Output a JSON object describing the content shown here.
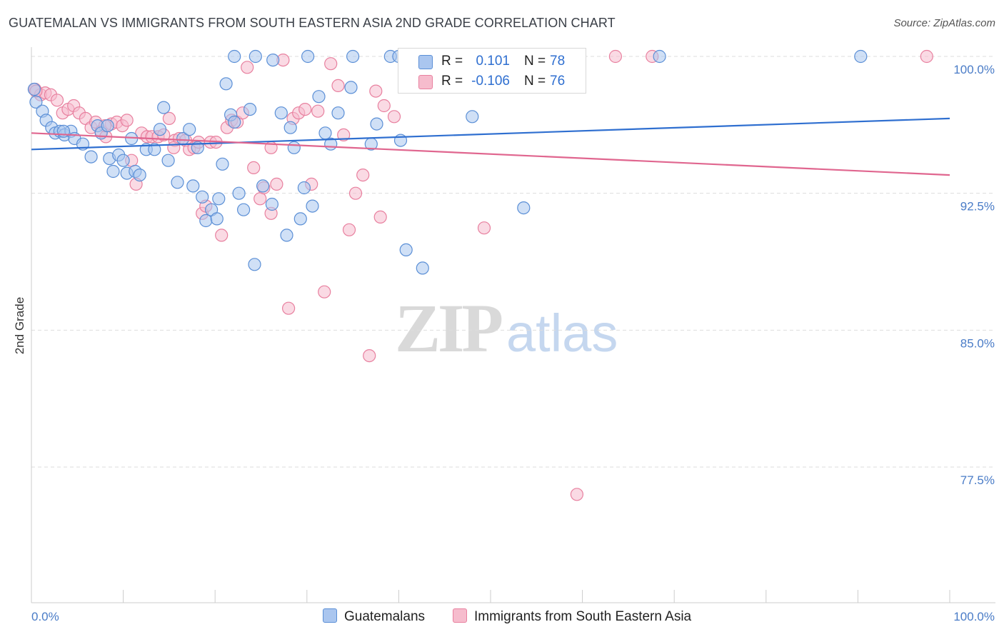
{
  "header": {
    "title": "GUATEMALAN VS IMMIGRANTS FROM SOUTH EASTERN ASIA 2ND GRADE CORRELATION CHART",
    "source": "Source: ZipAtlas.com"
  },
  "watermark": {
    "zip": "ZIP",
    "atlas": "atlas"
  },
  "legend": {
    "rows": [
      {
        "r_label": "R =",
        "r_value": "0.101",
        "n_label": "N =",
        "n_value": "78"
      },
      {
        "r_label": "R =",
        "r_value": "-0.106",
        "n_label": "N =",
        "n_value": "76"
      }
    ]
  },
  "colors": {
    "blue_fill": "#aac6ef",
    "blue_stroke": "#5b8fd6",
    "blue_line": "#2f6fd0",
    "pink_fill": "#f6bccd",
    "pink_stroke": "#e8809f",
    "pink_line": "#e0668f",
    "grid": "#dddddd",
    "axis_text": "#4a7cc7"
  },
  "chart_data": {
    "type": "scatter",
    "title": "GUATEMALAN VS IMMIGRANTS FROM SOUTH EASTERN ASIA 2ND GRADE CORRELATION CHART",
    "xlabel": "",
    "ylabel": "2nd Grade",
    "xlim": [
      0,
      100
    ],
    "ylim": [
      70,
      101.5
    ],
    "x_tick_labels": [
      "0.0%",
      "100.0%"
    ],
    "y_ticks": [
      77.5,
      85.0,
      92.5,
      100.0
    ],
    "y_tick_labels": [
      "77.5%",
      "85.0%",
      "92.5%",
      "100.0%"
    ],
    "grid": true,
    "legend_position": "top-center",
    "series": [
      {
        "name": "Guatemalans",
        "color": "#5b8fd6",
        "trend": {
          "x": [
            0,
            100
          ],
          "y": [
            94.9,
            96.6
          ]
        },
        "points": [
          [
            0.3,
            98.2
          ],
          [
            0.5,
            97.5
          ],
          [
            1.2,
            97.0
          ],
          [
            1.6,
            96.5
          ],
          [
            2.2,
            96.1
          ],
          [
            2.6,
            95.8
          ],
          [
            3.1,
            95.9
          ],
          [
            3.6,
            95.7
          ],
          [
            4.3,
            95.9
          ],
          [
            4.7,
            95.5
          ],
          [
            5.6,
            95.2
          ],
          [
            6.5,
            94.5
          ],
          [
            7.2,
            96.2
          ],
          [
            7.6,
            95.8
          ],
          [
            8.3,
            96.2
          ],
          [
            8.5,
            94.4
          ],
          [
            8.9,
            93.7
          ],
          [
            9.5,
            94.6
          ],
          [
            10.0,
            94.3
          ],
          [
            10.4,
            93.6
          ],
          [
            10.9,
            95.5
          ],
          [
            11.3,
            93.7
          ],
          [
            11.8,
            93.5
          ],
          [
            12.5,
            94.9
          ],
          [
            13.4,
            94.9
          ],
          [
            14.0,
            96.0
          ],
          [
            14.4,
            97.2
          ],
          [
            14.9,
            94.3
          ],
          [
            15.9,
            93.1
          ],
          [
            16.5,
            95.5
          ],
          [
            17.2,
            96.0
          ],
          [
            17.6,
            92.9
          ],
          [
            18.1,
            95.0
          ],
          [
            18.6,
            92.3
          ],
          [
            19.0,
            91.0
          ],
          [
            19.6,
            91.6
          ],
          [
            20.2,
            91.1
          ],
          [
            20.4,
            92.2
          ],
          [
            21.2,
            98.5
          ],
          [
            21.7,
            96.8
          ],
          [
            22.1,
            96.4
          ],
          [
            22.6,
            92.5
          ],
          [
            23.1,
            91.6
          ],
          [
            23.8,
            97.1
          ],
          [
            24.3,
            88.6
          ],
          [
            25.2,
            92.9
          ],
          [
            26.2,
            91.9
          ],
          [
            27.2,
            96.9
          ],
          [
            27.8,
            90.2
          ],
          [
            28.2,
            96.1
          ],
          [
            28.6,
            95.0
          ],
          [
            29.3,
            91.1
          ],
          [
            29.7,
            92.8
          ],
          [
            30.6,
            91.8
          ],
          [
            31.3,
            97.8
          ],
          [
            32.0,
            95.8
          ],
          [
            32.6,
            95.2
          ],
          [
            33.4,
            96.9
          ],
          [
            35.0,
            100.0
          ],
          [
            37.0,
            95.2
          ],
          [
            37.6,
            96.3
          ],
          [
            40.2,
            95.4
          ],
          [
            40.8,
            89.4
          ],
          [
            42.6,
            88.4
          ],
          [
            48.0,
            96.7
          ],
          [
            51.2,
            100.0
          ],
          [
            53.6,
            91.7
          ],
          [
            68.4,
            100.0
          ],
          [
            90.3,
            100.0
          ],
          [
            34.8,
            98.3
          ],
          [
            22.1,
            100.0
          ],
          [
            24.4,
            100.0
          ],
          [
            26.3,
            99.8
          ],
          [
            30.1,
            100.0
          ],
          [
            39.1,
            100.0
          ],
          [
            40.0,
            100.0
          ],
          [
            3.5,
            95.9
          ],
          [
            20.8,
            94.1
          ]
        ]
      },
      {
        "name": "Immigrants from South Eastern Asia",
        "color": "#e8809f",
        "trend": {
          "x": [
            0,
            100
          ],
          "y": [
            95.8,
            93.5
          ]
        },
        "points": [
          [
            0.4,
            98.2
          ],
          [
            1.0,
            97.9
          ],
          [
            1.5,
            98.0
          ],
          [
            2.1,
            97.9
          ],
          [
            2.8,
            97.6
          ],
          [
            3.4,
            96.9
          ],
          [
            4.0,
            97.1
          ],
          [
            4.6,
            97.3
          ],
          [
            5.2,
            96.9
          ],
          [
            5.9,
            96.6
          ],
          [
            6.5,
            96.1
          ],
          [
            7.0,
            96.4
          ],
          [
            7.6,
            95.9
          ],
          [
            8.1,
            95.6
          ],
          [
            8.7,
            96.3
          ],
          [
            9.3,
            96.4
          ],
          [
            9.9,
            96.2
          ],
          [
            10.4,
            96.5
          ],
          [
            10.9,
            94.3
          ],
          [
            11.4,
            93.0
          ],
          [
            12.0,
            95.8
          ],
          [
            12.6,
            95.6
          ],
          [
            13.1,
            95.6
          ],
          [
            13.8,
            95.6
          ],
          [
            14.4,
            95.7
          ],
          [
            15.0,
            96.6
          ],
          [
            15.6,
            95.4
          ],
          [
            16.1,
            95.5
          ],
          [
            16.8,
            95.4
          ],
          [
            17.2,
            94.9
          ],
          [
            17.7,
            95.0
          ],
          [
            18.2,
            95.3
          ],
          [
            18.6,
            91.4
          ],
          [
            19.0,
            91.8
          ],
          [
            19.5,
            95.3
          ],
          [
            20.1,
            95.3
          ],
          [
            20.7,
            90.2
          ],
          [
            21.3,
            96.1
          ],
          [
            21.8,
            96.5
          ],
          [
            22.4,
            96.4
          ],
          [
            23.0,
            96.9
          ],
          [
            23.5,
            99.4
          ],
          [
            24.2,
            93.9
          ],
          [
            24.9,
            92.2
          ],
          [
            25.3,
            92.8
          ],
          [
            26.1,
            95.0
          ],
          [
            26.7,
            93.0
          ],
          [
            27.4,
            99.8
          ],
          [
            28.0,
            86.2
          ],
          [
            28.5,
            96.6
          ],
          [
            29.1,
            96.9
          ],
          [
            29.8,
            97.1
          ],
          [
            30.5,
            93.0
          ],
          [
            31.2,
            97.0
          ],
          [
            31.9,
            87.1
          ],
          [
            32.6,
            99.6
          ],
          [
            33.4,
            98.4
          ],
          [
            34.0,
            95.7
          ],
          [
            34.6,
            90.5
          ],
          [
            35.3,
            92.5
          ],
          [
            36.1,
            93.5
          ],
          [
            36.8,
            83.6
          ],
          [
            37.5,
            98.1
          ],
          [
            38.0,
            91.2
          ],
          [
            38.4,
            97.3
          ],
          [
            39.5,
            96.7
          ],
          [
            44.3,
            99.4
          ],
          [
            49.3,
            90.6
          ],
          [
            59.4,
            76.0
          ],
          [
            63.6,
            100.0
          ],
          [
            67.6,
            100.0
          ],
          [
            97.5,
            100.0
          ],
          [
            0.5,
            98.1
          ],
          [
            8.0,
            96.2
          ],
          [
            26.1,
            91.4
          ],
          [
            15.5,
            95.0
          ]
        ]
      }
    ]
  },
  "bottom_legend": {
    "items": [
      "Guatemalans",
      "Immigrants from South Eastern Asia"
    ]
  }
}
